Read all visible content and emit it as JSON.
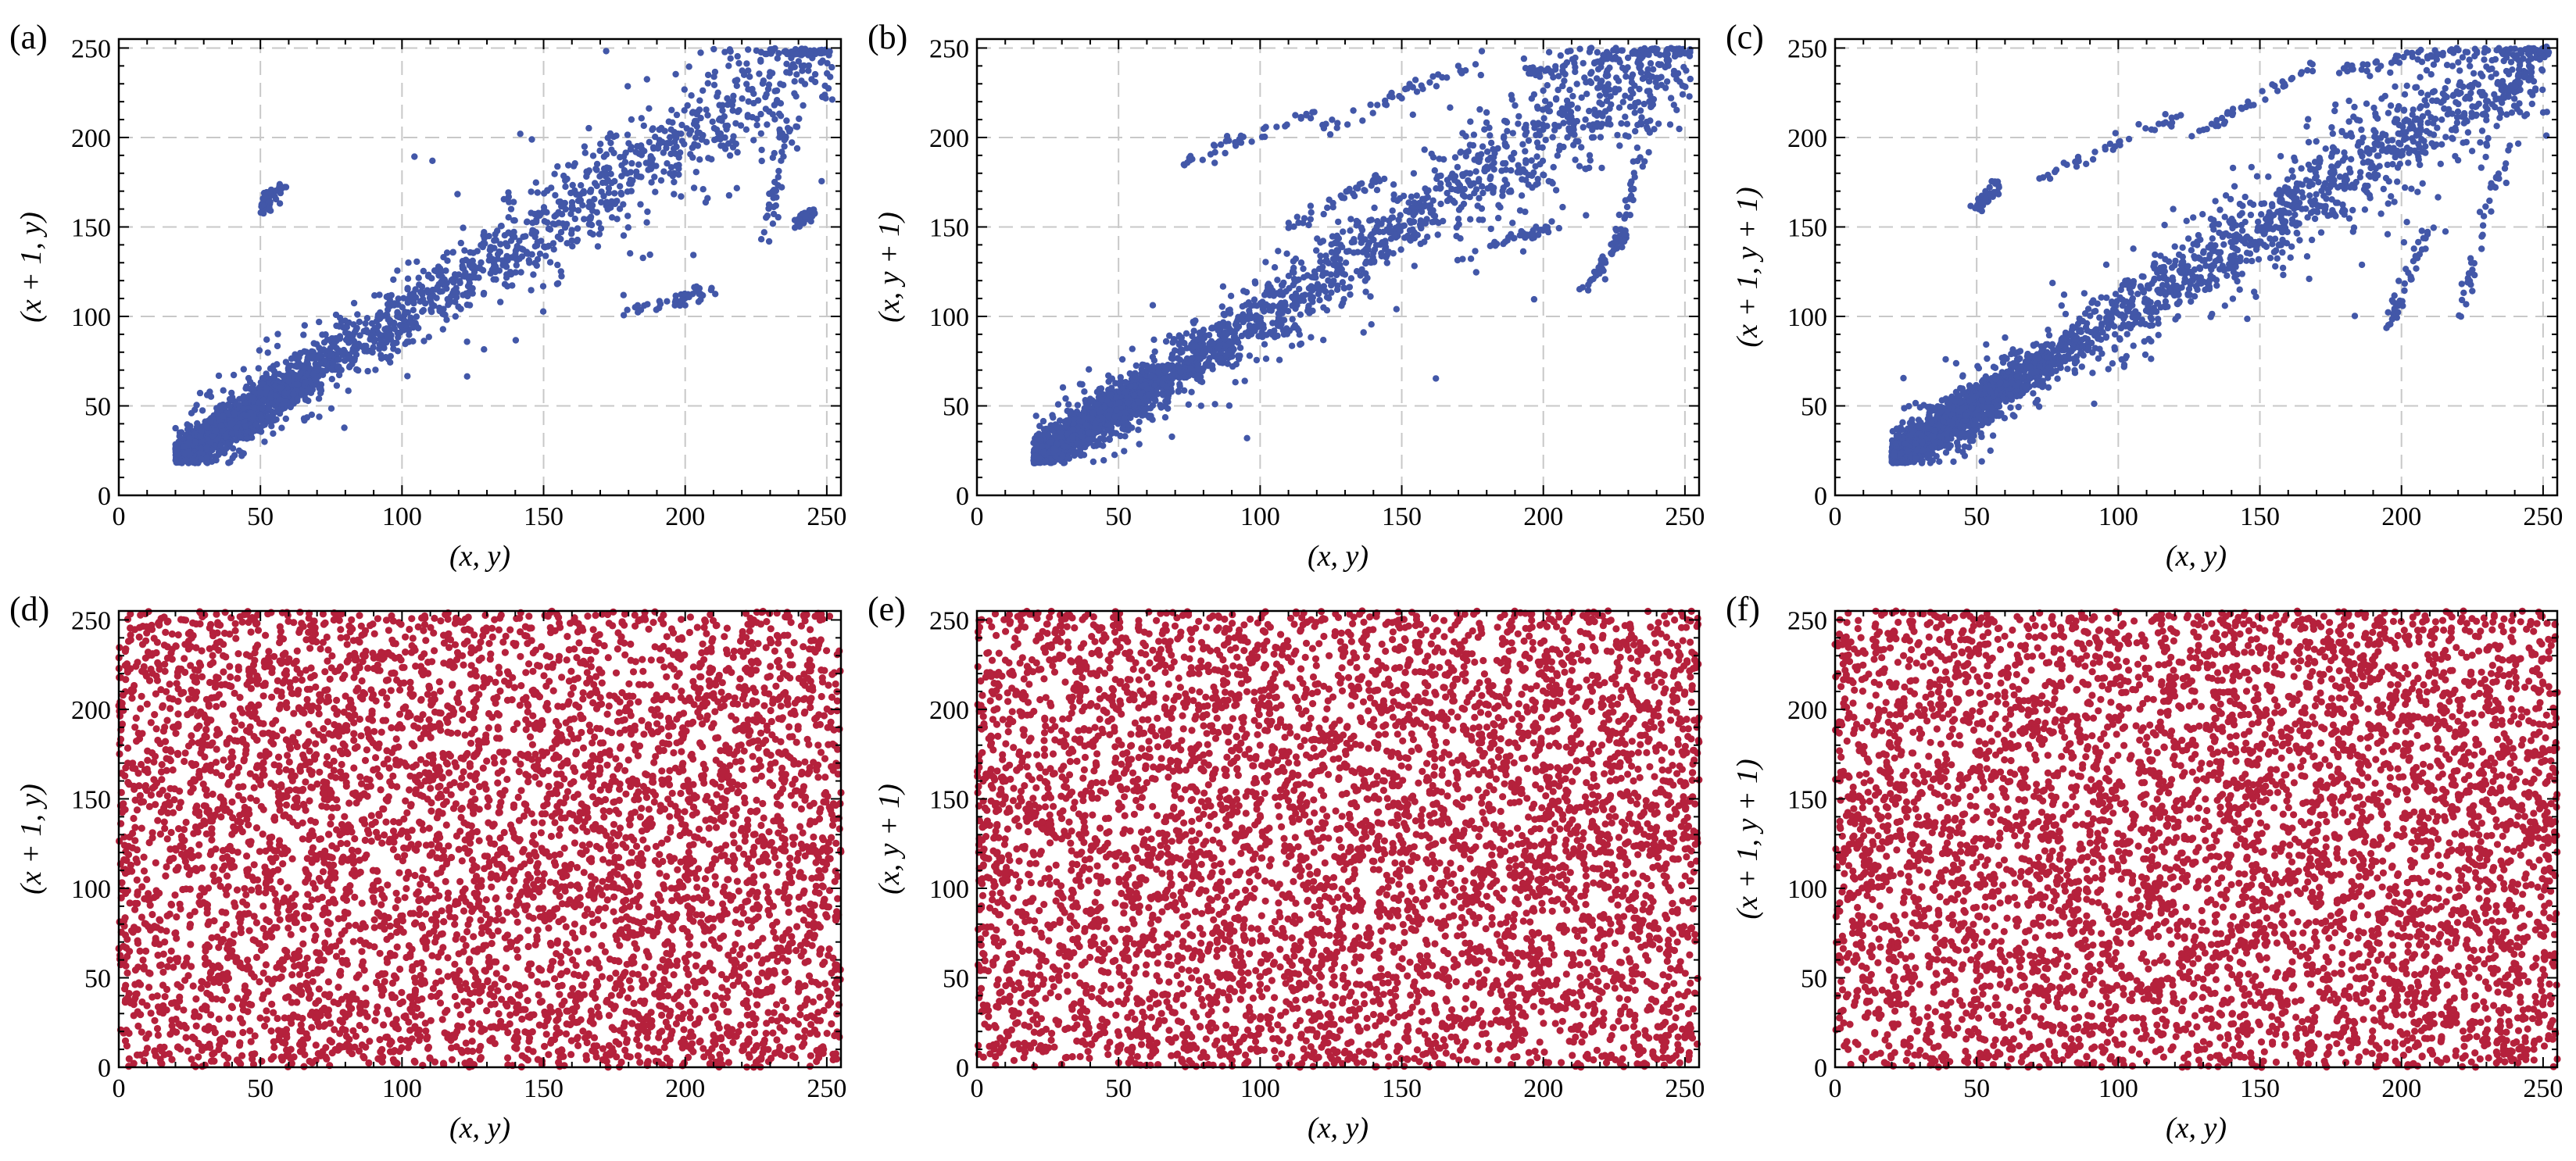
{
  "chart_data": [
    {
      "id": "a",
      "panel_label": "(a)",
      "type": "scatter",
      "distribution": "correlated",
      "xlabel": "(x, y)",
      "ylabel": "(x + 1, y)",
      "xlim": [
        0,
        255
      ],
      "ylim": [
        0,
        255
      ],
      "xticks": [
        0,
        50,
        100,
        150,
        200,
        250
      ],
      "yticks": [
        0,
        50,
        100,
        150,
        200,
        250
      ],
      "grid": true,
      "color": "#4257a8",
      "seed": 11,
      "n_points": 2600,
      "outlier_segments": [
        {
          "x": [
            228,
            236
          ],
          "y": [
            140,
            205
          ]
        },
        {
          "x": [
            180,
            212
          ],
          "y": [
            102,
            115
          ]
        },
        {
          "x": [
            50,
            58
          ],
          "y": [
            160,
            173
          ]
        },
        {
          "x": [
            240,
            244
          ],
          "y": [
            152,
            158
          ]
        }
      ]
    },
    {
      "id": "b",
      "panel_label": "(b)",
      "type": "scatter",
      "distribution": "correlated",
      "xlabel": "(x, y)",
      "ylabel": "(x, y + 1)",
      "xlim": [
        0,
        255
      ],
      "ylim": [
        0,
        255
      ],
      "xticks": [
        0,
        50,
        100,
        150,
        200,
        250
      ],
      "yticks": [
        0,
        50,
        100,
        150,
        200,
        250
      ],
      "grid": true,
      "color": "#4257a8",
      "seed": 23,
      "n_points": 2800,
      "outlier_segments": [
        {
          "x": [
            72,
            120
          ],
          "y": [
            185,
            215
          ]
        },
        {
          "x": [
            120,
            175
          ],
          "y": [
            205,
            240
          ]
        },
        {
          "x": [
            190,
            240
          ],
          "y": [
            235,
            248
          ]
        },
        {
          "x": [
            226,
            240
          ],
          "y": [
            140,
            230
          ]
        },
        {
          "x": [
            110,
            145
          ],
          "y": [
            150,
            180
          ]
        },
        {
          "x": [
            215,
            230
          ],
          "y": [
            115,
            148
          ]
        },
        {
          "x": [
            180,
            205
          ],
          "y": [
            140,
            150
          ]
        }
      ]
    },
    {
      "id": "c",
      "panel_label": "(c)",
      "type": "scatter",
      "distribution": "correlated",
      "xlabel": "(x, y)",
      "ylabel": "(x + 1, y + 1)",
      "xlim": [
        0,
        255
      ],
      "ylim": [
        0,
        255
      ],
      "xticks": [
        0,
        50,
        100,
        150,
        200,
        250
      ],
      "yticks": [
        0,
        50,
        100,
        150,
        200,
        250
      ],
      "grid": true,
      "color": "#4257a8",
      "seed": 37,
      "n_points": 2900,
      "outlier_segments": [
        {
          "x": [
            70,
            125
          ],
          "y": [
            175,
            215
          ]
        },
        {
          "x": [
            125,
            170
          ],
          "y": [
            200,
            240
          ]
        },
        {
          "x": [
            180,
            220
          ],
          "y": [
            238,
            248
          ]
        },
        {
          "x": [
            234,
            250
          ],
          "y": [
            220,
            248
          ]
        },
        {
          "x": [
            220,
            238
          ],
          "y": [
            100,
            200
          ]
        },
        {
          "x": [
            50,
            58
          ],
          "y": [
            160,
            173
          ]
        },
        {
          "x": [
            195,
            210
          ],
          "y": [
            95,
            150
          ]
        }
      ]
    },
    {
      "id": "d",
      "panel_label": "(d)",
      "type": "scatter",
      "distribution": "uniform",
      "xlabel": "(x, y)",
      "ylabel": "(x + 1, y)",
      "xlim": [
        0,
        255
      ],
      "ylim": [
        0,
        255
      ],
      "xticks": [
        0,
        50,
        100,
        150,
        200,
        250
      ],
      "yticks": [
        0,
        50,
        100,
        150,
        200,
        250
      ],
      "grid": false,
      "color": "#b5213c",
      "seed": 41,
      "n_points": 5200
    },
    {
      "id": "e",
      "panel_label": "(e)",
      "type": "scatter",
      "distribution": "uniform",
      "xlabel": "(x, y)",
      "ylabel": "(x, y + 1)",
      "xlim": [
        0,
        255
      ],
      "ylim": [
        0,
        255
      ],
      "xticks": [
        0,
        50,
        100,
        150,
        200,
        250
      ],
      "yticks": [
        0,
        50,
        100,
        150,
        200,
        250
      ],
      "grid": false,
      "color": "#b5213c",
      "seed": 53,
      "n_points": 5200
    },
    {
      "id": "f",
      "panel_label": "(f)",
      "type": "scatter",
      "distribution": "uniform",
      "xlabel": "(x, y)",
      "ylabel": "(x + 1, y + 1)",
      "xlim": [
        0,
        255
      ],
      "ylim": [
        0,
        255
      ],
      "xticks": [
        0,
        50,
        100,
        150,
        200,
        250
      ],
      "yticks": [
        0,
        50,
        100,
        150,
        200,
        250
      ],
      "grid": false,
      "color": "#b5213c",
      "seed": 67,
      "n_points": 5200
    }
  ]
}
